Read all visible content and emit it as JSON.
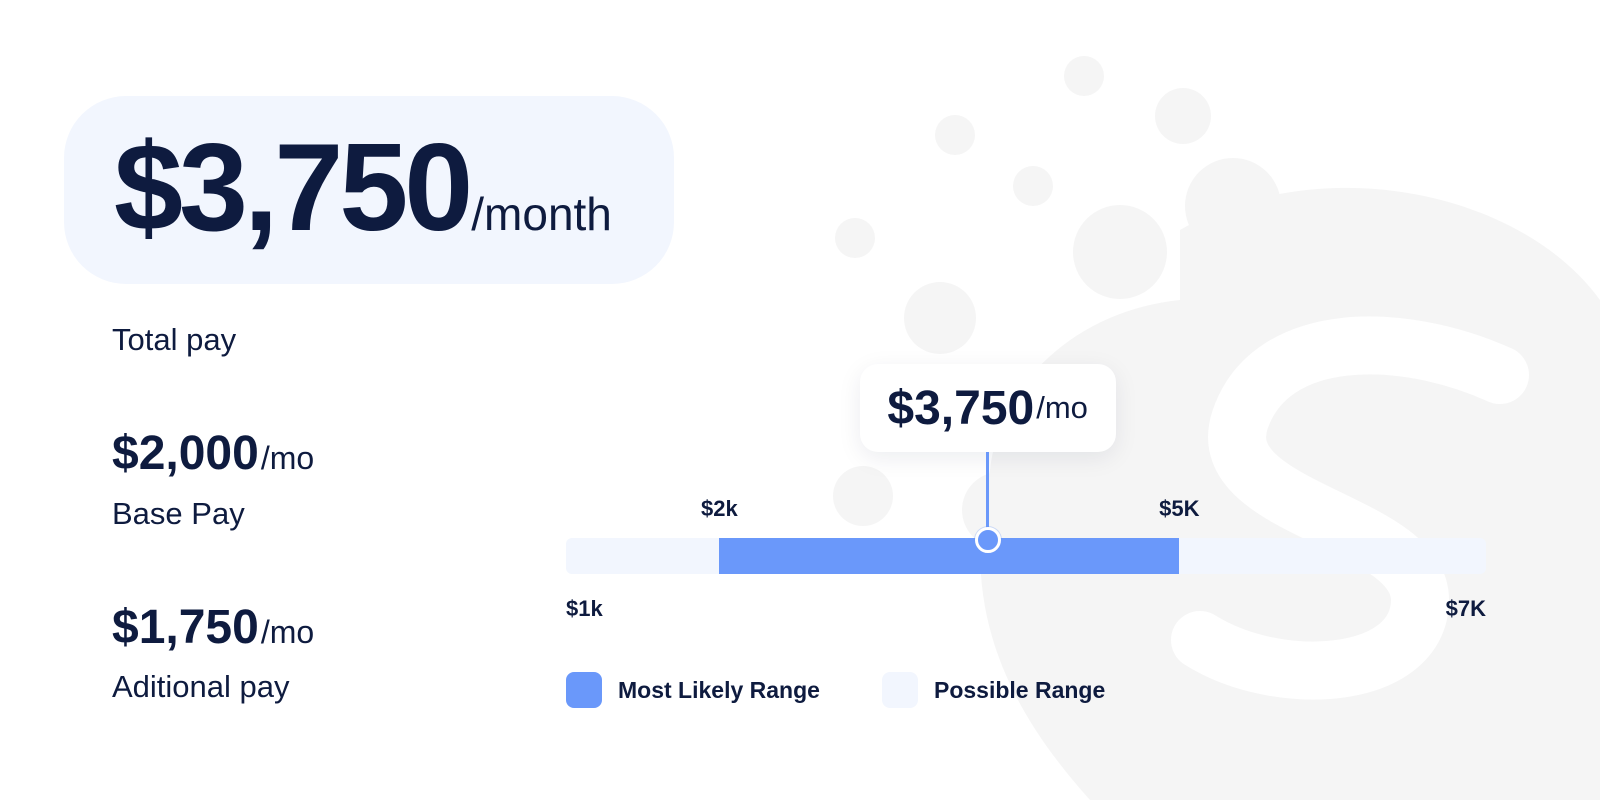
{
  "summary": {
    "total_amount": "$3,750",
    "total_unit": "/month",
    "total_label": "Total pay",
    "base_amount": "$2,000",
    "base_unit": "/mo",
    "base_label": "Base Pay",
    "additional_amount": "$1,750",
    "additional_unit": "/mo",
    "additional_label": "Aditional pay"
  },
  "colors": {
    "accent": "#6a98fa",
    "track": "#f2f6fe",
    "text": "#0e1b3f",
    "decoration": "#f5f5f5"
  },
  "chart_data": {
    "type": "bar",
    "orientation": "horizontal-range",
    "range_min": 1000,
    "range_max": 7000,
    "likely_min": 2000,
    "likely_max": 5000,
    "marker_value": 3750,
    "marker_label": {
      "amount": "$3,750",
      "unit": "/mo"
    },
    "tick_labels": {
      "likely_min": "$2k",
      "likely_max": "$5K",
      "range_min": "$1k",
      "range_max": "$7K"
    },
    "legend": [
      {
        "label": "Most Likely Range",
        "color": "#6a98fa"
      },
      {
        "label": "Possible Range",
        "color": "#f2f6fe"
      }
    ],
    "legend_placement": "bottom"
  }
}
